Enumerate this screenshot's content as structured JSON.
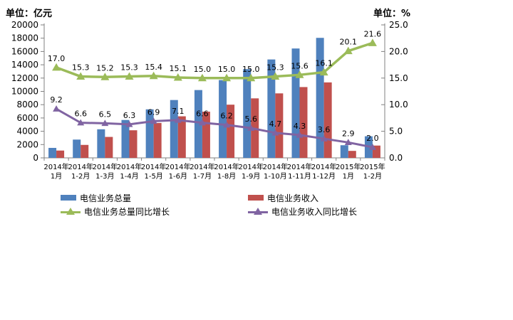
{
  "units": {
    "left": "单位：亿元",
    "right": "单位：%"
  },
  "chart_data": {
    "type": "combo-bar-line",
    "title": "",
    "grid": false,
    "legend_position": "bottom",
    "categories": [
      {
        "year": "2014年",
        "month": "1月"
      },
      {
        "year": "2014年",
        "month": "1-2月"
      },
      {
        "year": "2014年",
        "month": "1-3月"
      },
      {
        "year": "2014年",
        "month": "1-4月"
      },
      {
        "year": "2014年",
        "month": "1-5月"
      },
      {
        "year": "2014年",
        "month": "1-6月"
      },
      {
        "year": "2014年",
        "month": "1-7月"
      },
      {
        "year": "2014年",
        "month": "1-8月"
      },
      {
        "year": "2014年",
        "month": "1-9月"
      },
      {
        "year": "2014年",
        "month": "1-10月"
      },
      {
        "year": "2014年",
        "month": "1-11月"
      },
      {
        "year": "2014年",
        "month": "1-12月"
      },
      {
        "year": "2015年",
        "month": "1月"
      },
      {
        "year": "2015年",
        "month": "1-2月"
      }
    ],
    "bar_series": [
      {
        "name": "电信业务总量",
        "color": "#4F81BD",
        "axis": "left",
        "values": [
          1500,
          2750,
          4300,
          5700,
          7300,
          8700,
          10200,
          11700,
          13350,
          14800,
          16450,
          18050,
          1900,
          3250
        ]
      },
      {
        "name": "电信业务收入",
        "color": "#C0504D",
        "axis": "left",
        "values": [
          1100,
          1950,
          3150,
          4150,
          5250,
          6250,
          6950,
          8000,
          8950,
          9700,
          10650,
          11350,
          1050,
          1850
        ]
      }
    ],
    "line_series": [
      {
        "name": "电信业务总量同比增长",
        "color": "#9BBB59",
        "axis": "right",
        "values": [
          17.0,
          15.3,
          15.2,
          15.3,
          15.4,
          15.1,
          15.0,
          15.0,
          15.0,
          15.3,
          15.6,
          16.1,
          20.1,
          21.6
        ]
      },
      {
        "name": "电信业务收入同比增长",
        "color": "#8064A2",
        "axis": "right",
        "values": [
          9.2,
          6.6,
          6.5,
          6.3,
          6.9,
          7.1,
          6.6,
          6.2,
          5.6,
          4.7,
          4.3,
          3.6,
          2.9,
          2.0
        ]
      }
    ],
    "left_axis": {
      "min": 0,
      "max": 20000,
      "step": 2000
    },
    "right_axis": {
      "min": 0,
      "max": 25.0,
      "step": 5.0
    }
  }
}
